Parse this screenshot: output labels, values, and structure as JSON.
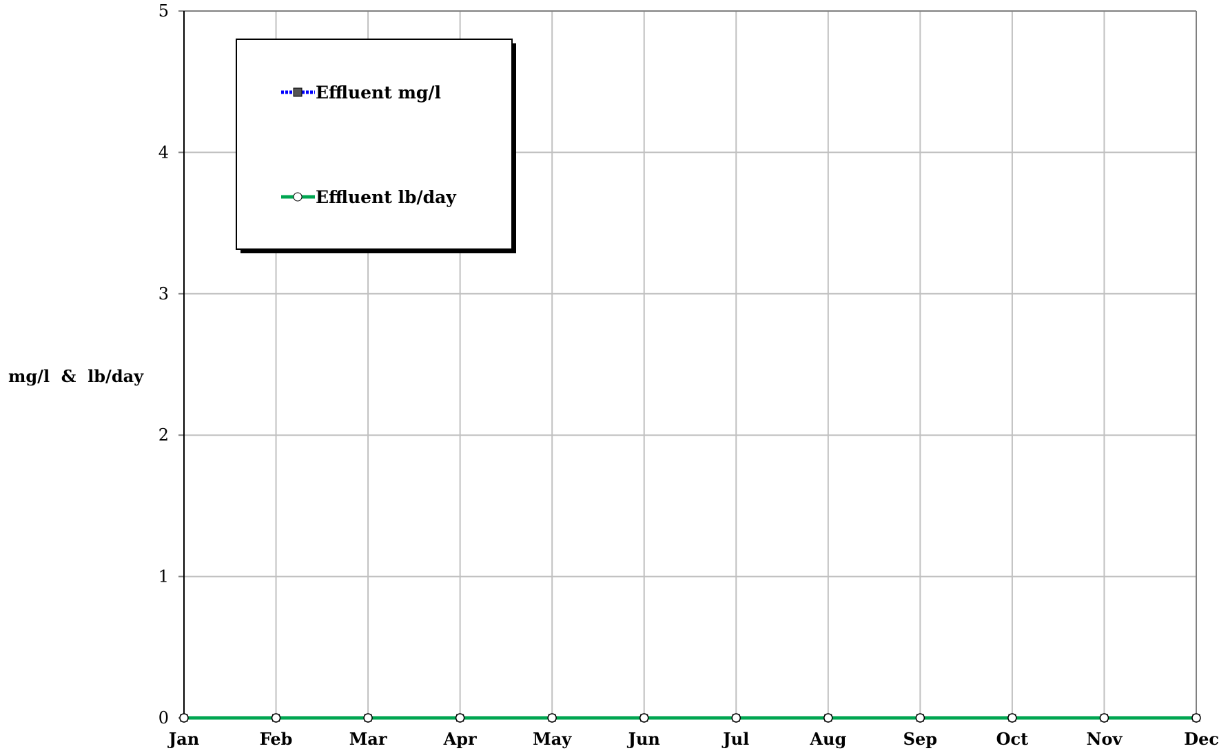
{
  "chart_data": {
    "type": "line",
    "title": "",
    "xlabel": "",
    "ylabel": "mg/l  &  lb/day",
    "categories": [
      "Jan",
      "Feb",
      "Mar",
      "Apr",
      "May",
      "Jun",
      "Jul",
      "Aug",
      "Sep",
      "Oct",
      "Nov",
      "Dec"
    ],
    "ylim": [
      0,
      5
    ],
    "yticks": [
      0,
      1,
      2,
      3,
      4,
      5
    ],
    "grid": true,
    "legend_position": "top-left",
    "series": [
      {
        "name": "Effluent mg/l",
        "values": [
          0,
          0,
          0,
          0,
          0,
          0,
          0,
          0,
          0,
          0,
          0,
          0
        ],
        "color": "#0000ff",
        "marker": "square",
        "marker_color": "#555555"
      },
      {
        "name": "Effluent lb/day",
        "values": [
          0,
          0,
          0,
          0,
          0,
          0,
          0,
          0,
          0,
          0,
          0,
          0
        ],
        "color": "#00a651",
        "marker": "circle",
        "marker_color": "#ffffff"
      }
    ],
    "colors": {
      "grid": "#c0c0c0",
      "axis": "#808080"
    }
  }
}
